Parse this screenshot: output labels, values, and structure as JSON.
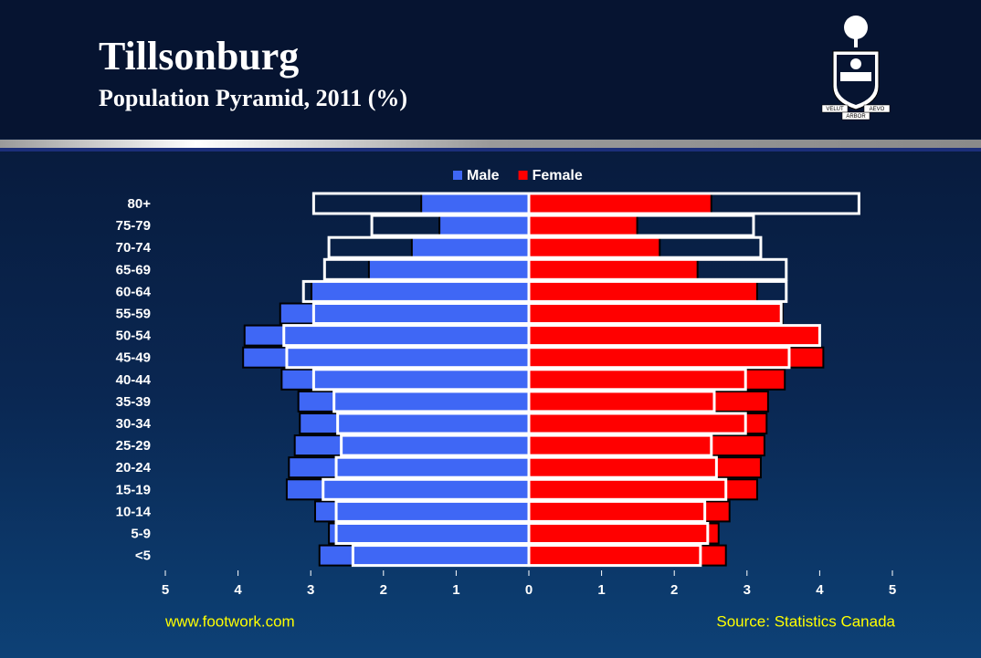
{
  "chart_data": {
    "type": "bar",
    "orientation": "horizontal",
    "title": "Tillsonburg",
    "subtitle": "Population Pyramid, 2011 (%)",
    "categories": [
      "80+",
      "75-79",
      "70-74",
      "65-69",
      "60-64",
      "55-59",
      "50-54",
      "45-49",
      "40-44",
      "35-39",
      "30-34",
      "25-29",
      "20-24",
      "15-19",
      "10-14",
      "5-9",
      "<5"
    ],
    "series": [
      {
        "name": "Male",
        "color": "#3f67f5",
        "side": "left",
        "outline": false,
        "values": [
          1.48,
          1.23,
          1.61,
          2.2,
          2.99,
          3.42,
          3.91,
          3.93,
          3.4,
          3.17,
          3.15,
          3.22,
          3.3,
          3.33,
          2.94,
          2.75,
          2.88
        ]
      },
      {
        "name": "Female",
        "color": "#ff0000",
        "side": "right",
        "outline": false,
        "values": [
          2.51,
          1.49,
          1.8,
          2.32,
          3.14,
          3.49,
          4.0,
          4.05,
          3.52,
          3.29,
          3.27,
          3.24,
          3.19,
          3.14,
          2.76,
          2.61,
          2.71
        ]
      },
      {
        "color": "#ffffff",
        "side": "left",
        "outline": true,
        "values": [
          2.96,
          2.16,
          2.75,
          2.81,
          3.1,
          2.96,
          3.37,
          3.33,
          2.96,
          2.68,
          2.63,
          2.58,
          2.65,
          2.83,
          2.65,
          2.65,
          2.42
        ]
      },
      {
        "color": "#ffffff",
        "side": "right",
        "outline": true,
        "values": [
          4.54,
          3.09,
          3.19,
          3.54,
          3.54,
          3.47,
          4.0,
          3.58,
          2.98,
          2.55,
          2.98,
          2.51,
          2.58,
          2.71,
          2.42,
          2.46,
          2.36
        ]
      }
    ],
    "xlim": [
      0,
      5
    ],
    "xticks": [
      0,
      1,
      2,
      3,
      4,
      5
    ],
    "legend": "top",
    "footer_left": "www.footwork.com",
    "footer_right": "Source: Statistics Canada"
  },
  "logo": {
    "motto": [
      "VELUT",
      "ARBOR",
      "AEVO"
    ]
  }
}
